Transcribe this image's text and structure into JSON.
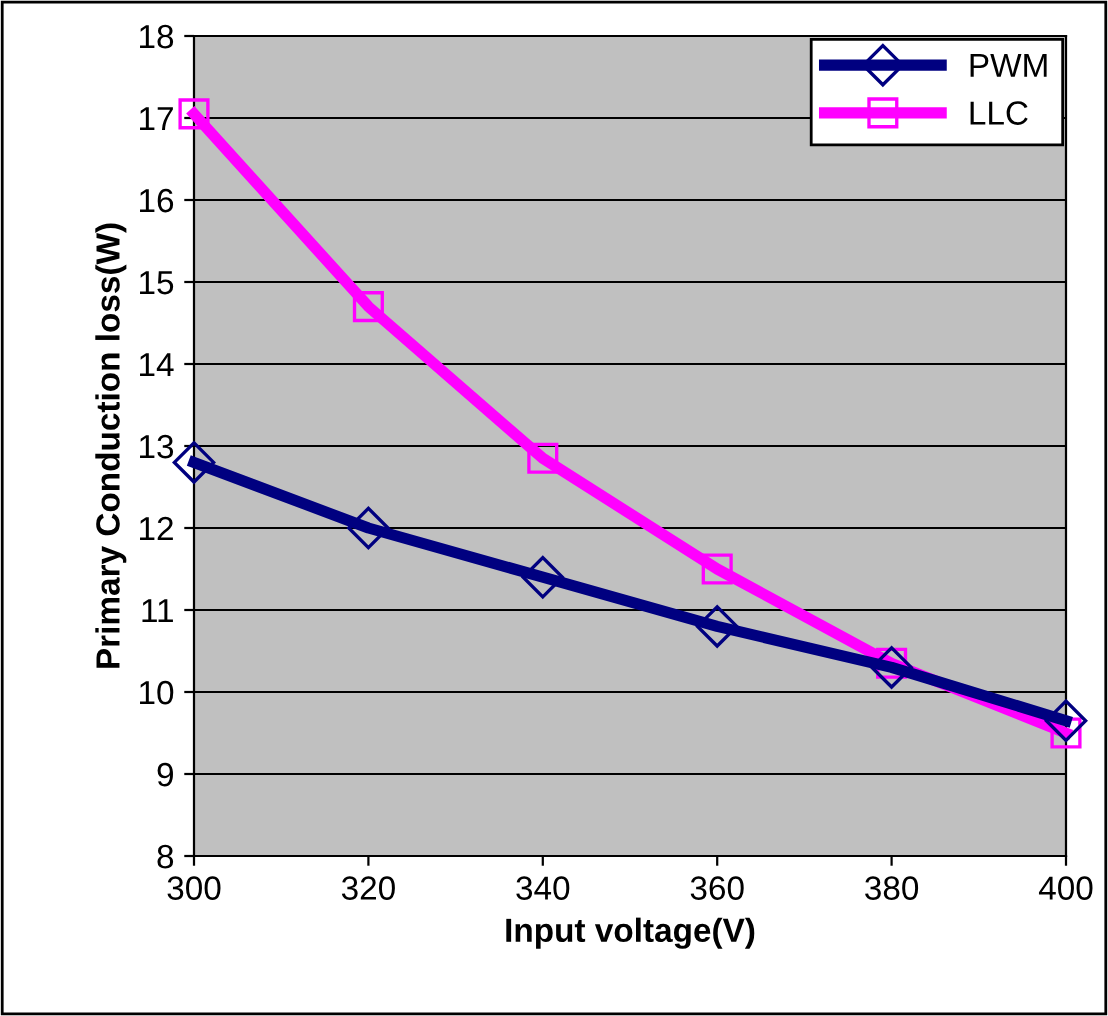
{
  "chart_data": {
    "type": "line",
    "xlabel": "Input voltage(V)",
    "ylabel": "Primary Conduction loss(W)",
    "x": [
      300,
      320,
      340,
      360,
      380,
      400
    ],
    "series": [
      {
        "name": "PWM",
        "color": "#000080",
        "values": [
          12.8,
          12.0,
          11.4,
          10.8,
          10.3,
          9.65
        ],
        "marker": "diamond"
      },
      {
        "name": "LLC",
        "color": "#ff00ff",
        "values": [
          17.05,
          14.7,
          12.85,
          11.5,
          10.35,
          9.5
        ],
        "marker": "square"
      }
    ],
    "xlim": [
      300,
      400
    ],
    "xticks": [
      300,
      320,
      340,
      360,
      380,
      400
    ],
    "ylim": [
      8,
      18
    ],
    "yticks": [
      8,
      9,
      10,
      11,
      12,
      13,
      14,
      15,
      16,
      17,
      18
    ],
    "grid": "y",
    "legend": "top right",
    "line_style": "solid"
  }
}
